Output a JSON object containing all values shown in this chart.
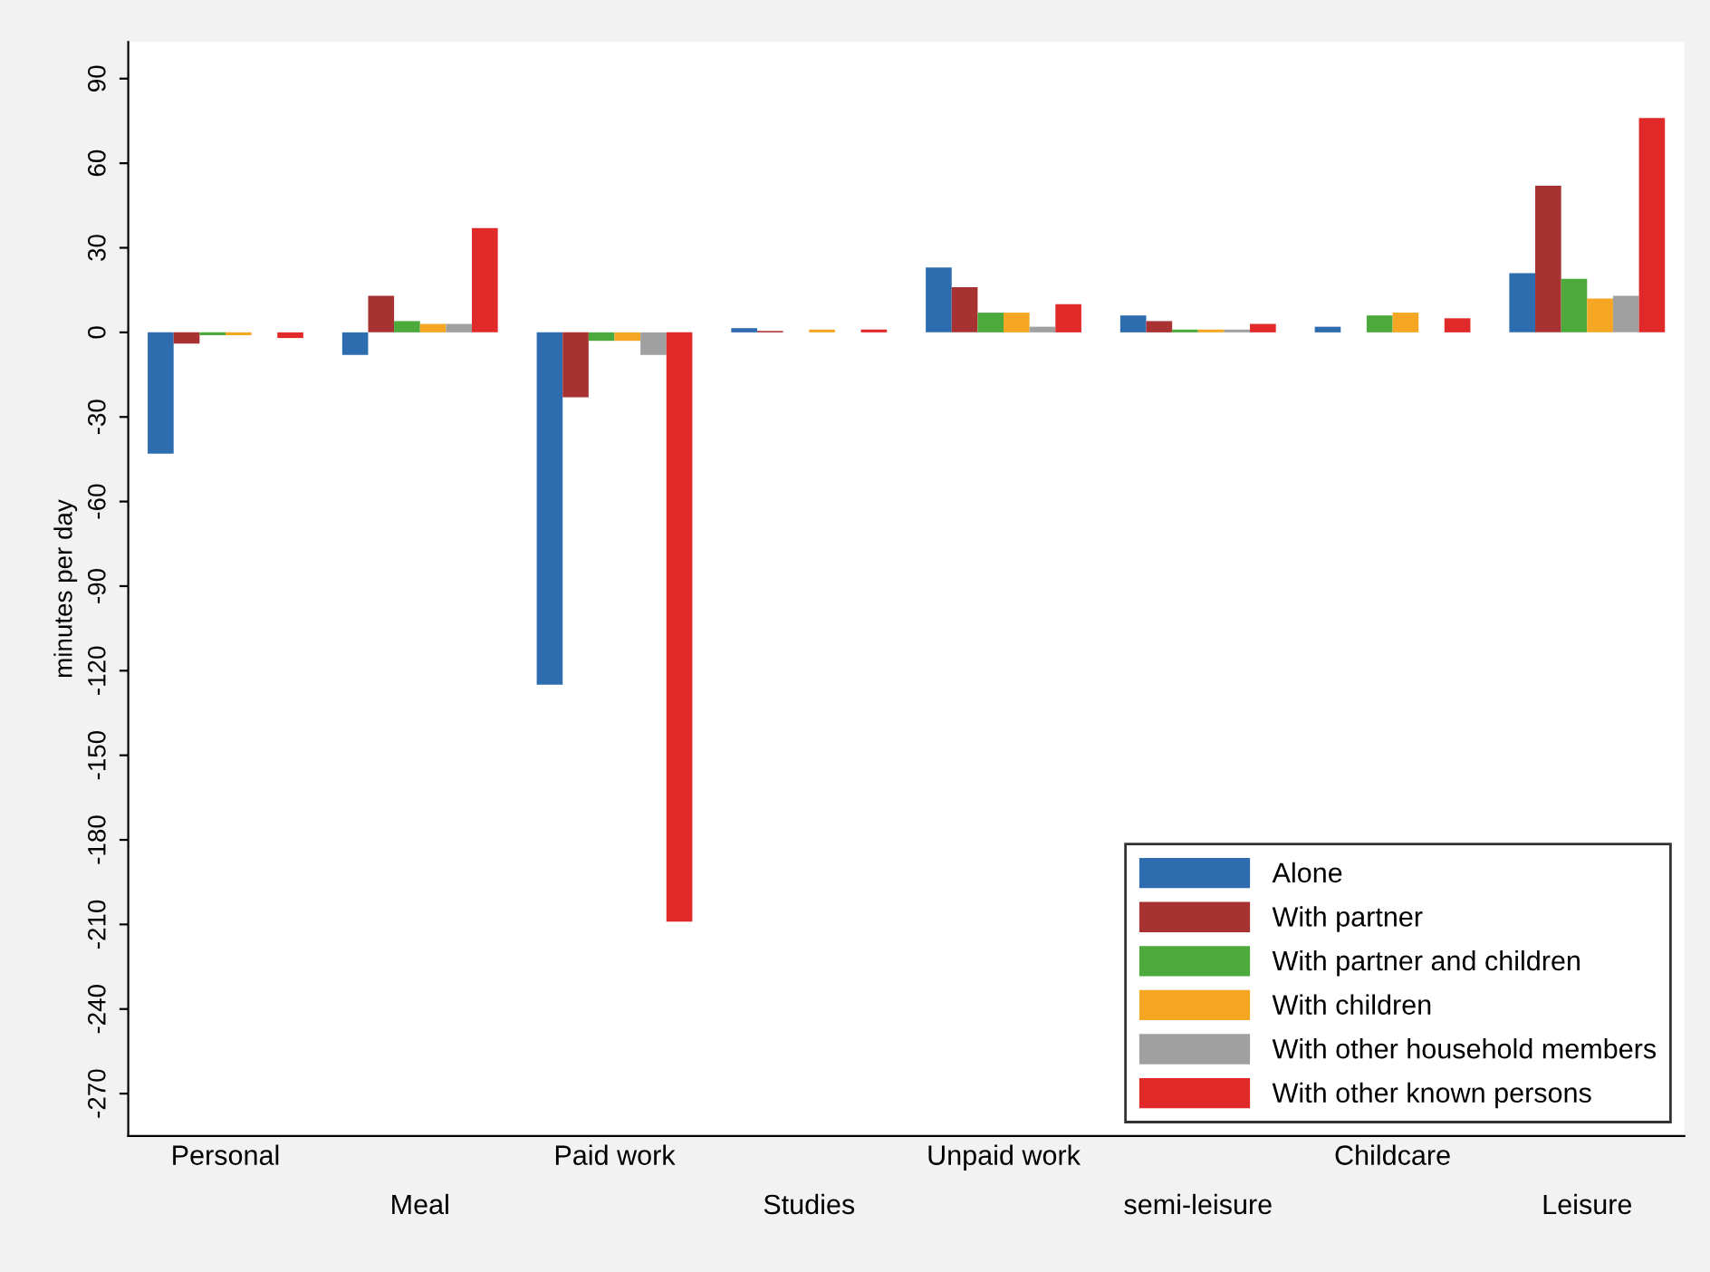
{
  "chart_data": {
    "type": "bar",
    "ylabel": "minutes per day",
    "categories": [
      "Personal",
      "Meal",
      "Paid work",
      "Studies",
      "Unpaid work",
      "semi-leisure",
      "Childcare",
      "Leisure"
    ],
    "ylim": [
      -285,
      103
    ],
    "yticks": [
      90,
      60,
      30,
      0,
      -30,
      -60,
      -90,
      -120,
      -150,
      -180,
      -210,
      -240,
      -270
    ],
    "grid": false,
    "legend": "bottom right",
    "series": [
      {
        "name": "Alone",
        "color": "#2e6cb0",
        "values": [
          -43,
          -8,
          -125,
          1.5,
          23,
          6,
          2,
          21
        ]
      },
      {
        "name": "With partner",
        "color": "#a83232",
        "values": [
          -4,
          13,
          -23,
          0.5,
          16,
          4,
          0,
          52
        ]
      },
      {
        "name": "With partner and children",
        "color": "#4ca93c",
        "values": [
          -1,
          4,
          -3,
          0,
          7,
          1,
          6,
          19
        ]
      },
      {
        "name": "With children",
        "color": "#f5a623",
        "values": [
          -1,
          3,
          -3,
          1,
          7,
          1,
          7,
          12
        ]
      },
      {
        "name": "With other household members",
        "color": "#a0a0a0",
        "values": [
          0,
          3,
          -8,
          0,
          2,
          1,
          0,
          13
        ]
      },
      {
        "name": "With other known persons",
        "color": "#e02a2a",
        "values": [
          -2,
          37,
          -209,
          1,
          10,
          3,
          5,
          76
        ]
      }
    ]
  }
}
